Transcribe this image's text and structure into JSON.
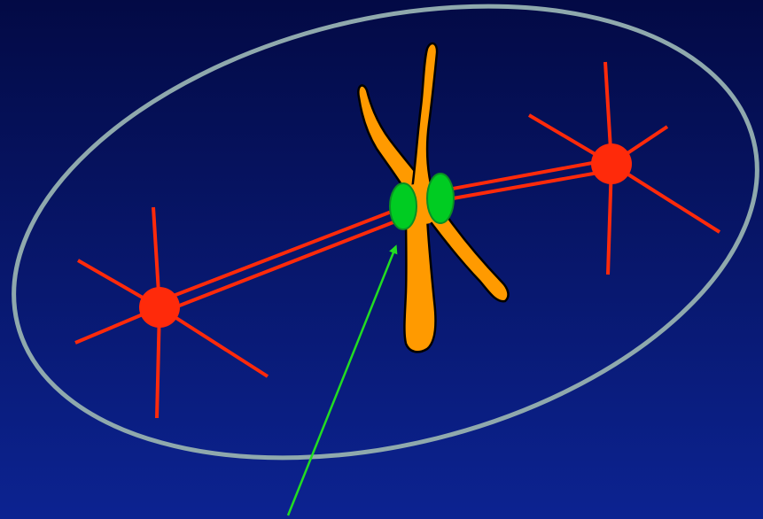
{
  "diagram": {
    "colors": {
      "background_top": "#030a45",
      "background_bottom": "#0c2391",
      "cell_outline": "#8fa9ad",
      "spindle_pole": "#ff2a0a",
      "spindle_fiber": "#ff2a0a",
      "chromosome_fill": "#ff9a00",
      "chromosome_outline": "#000000",
      "kinetochore_fill": "#00cc22",
      "kinetochore_outline": "#0a8f22",
      "pointer_arrow": "#22dd22"
    },
    "elements": {
      "cell_boundary": "ellipse",
      "left_pole": "centrosome-with-astral-rays",
      "right_pole": "centrosome-with-astral-rays",
      "chromosome": "x-shaped-replicated-chromosome",
      "kinetochores": 2,
      "spindle_fibers": "double-line-per-side",
      "pointer": "arrow-to-left-kinetochore"
    }
  }
}
